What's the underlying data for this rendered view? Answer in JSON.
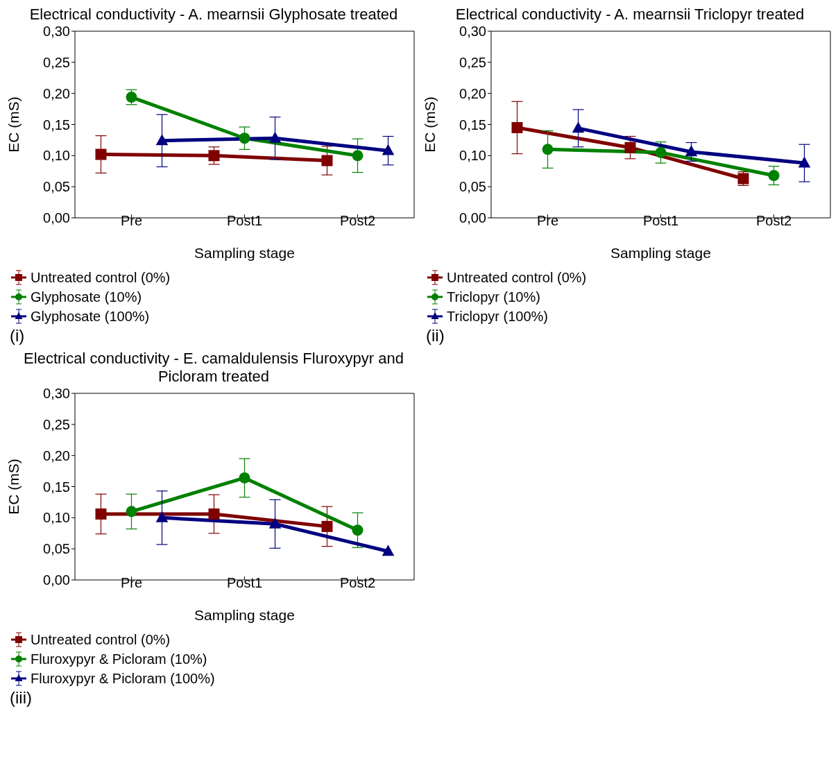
{
  "chart_data": [
    {
      "type": "line",
      "title": "Electrical conductivity - A. mearnsii Glyphosate treated",
      "xlabel": "Sampling stage",
      "ylabel": "EC (mS)",
      "categories": [
        "Pre",
        "Post1",
        "Post2"
      ],
      "ylim": [
        0,
        0.3
      ],
      "yticks": [
        {
          "value": 0,
          "label": "0,00"
        },
        {
          "value": 0.05,
          "label": "0,05"
        },
        {
          "value": 0.1,
          "label": "0,10"
        },
        {
          "value": 0.15,
          "label": "0,15"
        },
        {
          "value": 0.2,
          "label": "0,20"
        },
        {
          "value": 0.25,
          "label": "0,25"
        },
        {
          "value": 0.3,
          "label": "0,30"
        }
      ],
      "legend": "bottom",
      "annotations": [
        "(i)"
      ],
      "series": [
        {
          "name": "Untreated control (0%)",
          "color": "#800000",
          "marker": "square",
          "values": [
            0.102,
            0.1,
            0.092
          ],
          "errors": [
            0.03,
            0.014,
            0.023
          ]
        },
        {
          "name": "Glyphosate (10%)",
          "color": "#008000",
          "marker": "circle",
          "values": [
            0.194,
            0.128,
            0.1
          ],
          "errors": [
            0.012,
            0.018,
            0.027
          ]
        },
        {
          "name": "Glyphosate (100%)",
          "color": "#000080",
          "marker": "triangle",
          "values": [
            0.124,
            0.128,
            0.108
          ],
          "errors": [
            0.042,
            0.034,
            0.023
          ]
        }
      ]
    },
    {
      "type": "line",
      "title": "Electrical conductivity - A. mearnsii Triclopyr treated",
      "xlabel": "Sampling stage",
      "ylabel": "EC (mS)",
      "categories": [
        "Pre",
        "Post1",
        "Post2"
      ],
      "ylim": [
        0,
        0.3
      ],
      "yticks": [
        {
          "value": 0,
          "label": "0,00"
        },
        {
          "value": 0.05,
          "label": "0,05"
        },
        {
          "value": 0.1,
          "label": "0,10"
        },
        {
          "value": 0.15,
          "label": "0,15"
        },
        {
          "value": 0.2,
          "label": "0,20"
        },
        {
          "value": 0.25,
          "label": "0,25"
        },
        {
          "value": 0.3,
          "label": "0,30"
        }
      ],
      "legend": "bottom",
      "annotations": [
        "(ii)"
      ],
      "series": [
        {
          "name": "Untreated control (0%)",
          "color": "#800000",
          "marker": "square",
          "values": [
            0.145,
            0.113,
            0.063
          ],
          "errors": [
            0.042,
            0.018,
            0.011
          ]
        },
        {
          "name": "Triclopyr (10%)",
          "color": "#008000",
          "marker": "circle",
          "values": [
            0.11,
            0.105,
            0.068
          ],
          "errors": [
            0.03,
            0.017,
            0.015
          ]
        },
        {
          "name": "Triclopyr (100%)",
          "color": "#000080",
          "marker": "triangle",
          "values": [
            0.144,
            0.106,
            0.088
          ],
          "errors": [
            0.03,
            0.015,
            0.03
          ]
        }
      ]
    },
    {
      "type": "line",
      "title": "Electrical conductivity - E. camaldulensis Fluroxypyr and Picloram treated",
      "xlabel": "Sampling stage",
      "ylabel": "EC (mS)",
      "categories": [
        "Pre",
        "Post1",
        "Post2"
      ],
      "ylim": [
        0,
        0.3
      ],
      "yticks": [
        {
          "value": 0,
          "label": "0,00"
        },
        {
          "value": 0.05,
          "label": "0,05"
        },
        {
          "value": 0.1,
          "label": "0,10"
        },
        {
          "value": 0.15,
          "label": "0,15"
        },
        {
          "value": 0.2,
          "label": "0,20"
        },
        {
          "value": 0.25,
          "label": "0,25"
        },
        {
          "value": 0.3,
          "label": "0,30"
        }
      ],
      "legend": "bottom",
      "annotations": [
        "(iii)"
      ],
      "series": [
        {
          "name": "Untreated control (0%)",
          "color": "#800000",
          "marker": "square",
          "values": [
            0.106,
            0.106,
            0.086
          ],
          "errors": [
            0.032,
            0.031,
            0.032
          ]
        },
        {
          "name": "Fluroxypyr & Picloram (10%)",
          "color": "#008000",
          "marker": "circle",
          "values": [
            0.11,
            0.164,
            0.08
          ],
          "errors": [
            0.028,
            0.031,
            0.028
          ]
        },
        {
          "name": "Fluroxypyr & Picloram (100%)",
          "color": "#000080",
          "marker": "triangle",
          "values": [
            0.1,
            0.09,
            0.046
          ],
          "errors": [
            0.043,
            0.039,
            null
          ]
        }
      ]
    }
  ]
}
